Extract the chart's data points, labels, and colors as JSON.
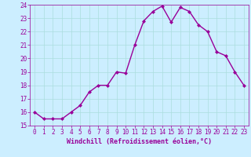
{
  "hours": [
    0,
    1,
    2,
    3,
    4,
    5,
    6,
    7,
    8,
    9,
    10,
    11,
    12,
    13,
    14,
    15,
    16,
    17,
    18,
    19,
    20,
    21,
    22,
    23
  ],
  "values": [
    16.0,
    15.5,
    15.5,
    15.5,
    16.0,
    16.5,
    17.5,
    18.0,
    18.0,
    19.0,
    18.9,
    21.0,
    22.8,
    23.5,
    23.9,
    22.7,
    23.8,
    23.5,
    22.5,
    22.0,
    20.5,
    20.2,
    19.0,
    18.0
  ],
  "line_color": "#990099",
  "marker": "D",
  "marker_size": 2.0,
  "bg_color": "#cceeff",
  "grid_color": "#aadddd",
  "xlabel": "Windchill (Refroidissement éolien,°C)",
  "ylim": [
    15,
    24
  ],
  "xlim_min": -0.5,
  "xlim_max": 23.5,
  "yticks": [
    15,
    16,
    17,
    18,
    19,
    20,
    21,
    22,
    23,
    24
  ],
  "xticks": [
    0,
    1,
    2,
    3,
    4,
    5,
    6,
    7,
    8,
    9,
    10,
    11,
    12,
    13,
    14,
    15,
    16,
    17,
    18,
    19,
    20,
    21,
    22,
    23
  ],
  "xlabel_color": "#990099",
  "tick_color": "#990099",
  "linewidth": 1.0,
  "tick_fontsize": 5.5,
  "xlabel_fontsize": 6.0
}
